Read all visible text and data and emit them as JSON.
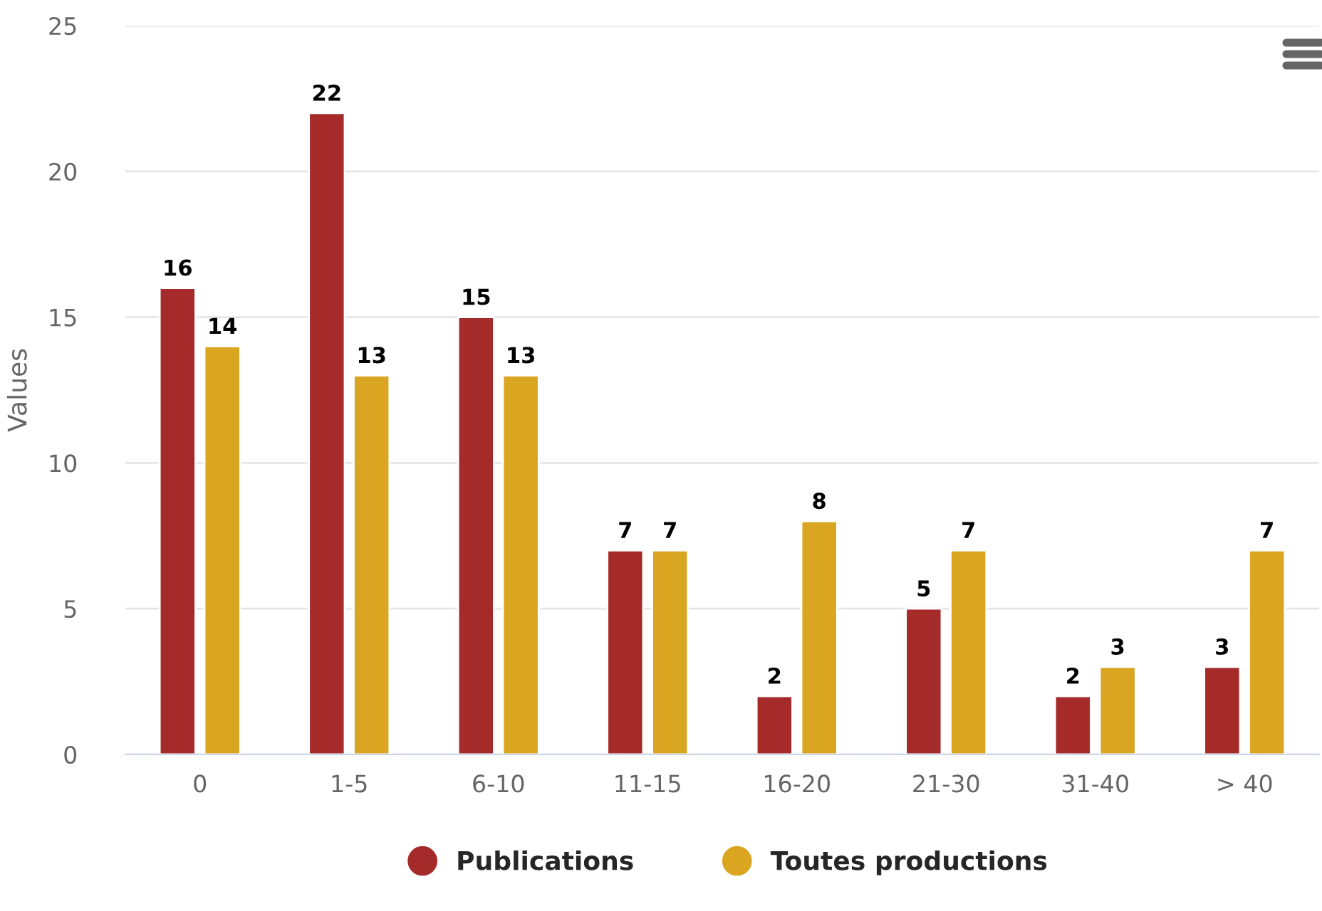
{
  "chart_data": {
    "type": "bar",
    "ylabel": "Values",
    "categories": [
      "0",
      "1-5",
      "6-10",
      "11-15",
      "16-20",
      "21-30",
      "31-40",
      "> 40"
    ],
    "series": [
      {
        "name": "Publications",
        "color": "#a52a2a",
        "values": [
          16,
          22,
          15,
          7,
          2,
          5,
          2,
          3
        ]
      },
      {
        "name": "Toutes productions",
        "color": "#daa520",
        "values": [
          14,
          13,
          13,
          7,
          8,
          7,
          3,
          7
        ]
      }
    ],
    "ylim": [
      0,
      25
    ],
    "yticks": [
      0,
      5,
      10,
      15,
      20,
      25
    ],
    "grid": "y",
    "legend": "bottom",
    "data_labels": true
  }
}
